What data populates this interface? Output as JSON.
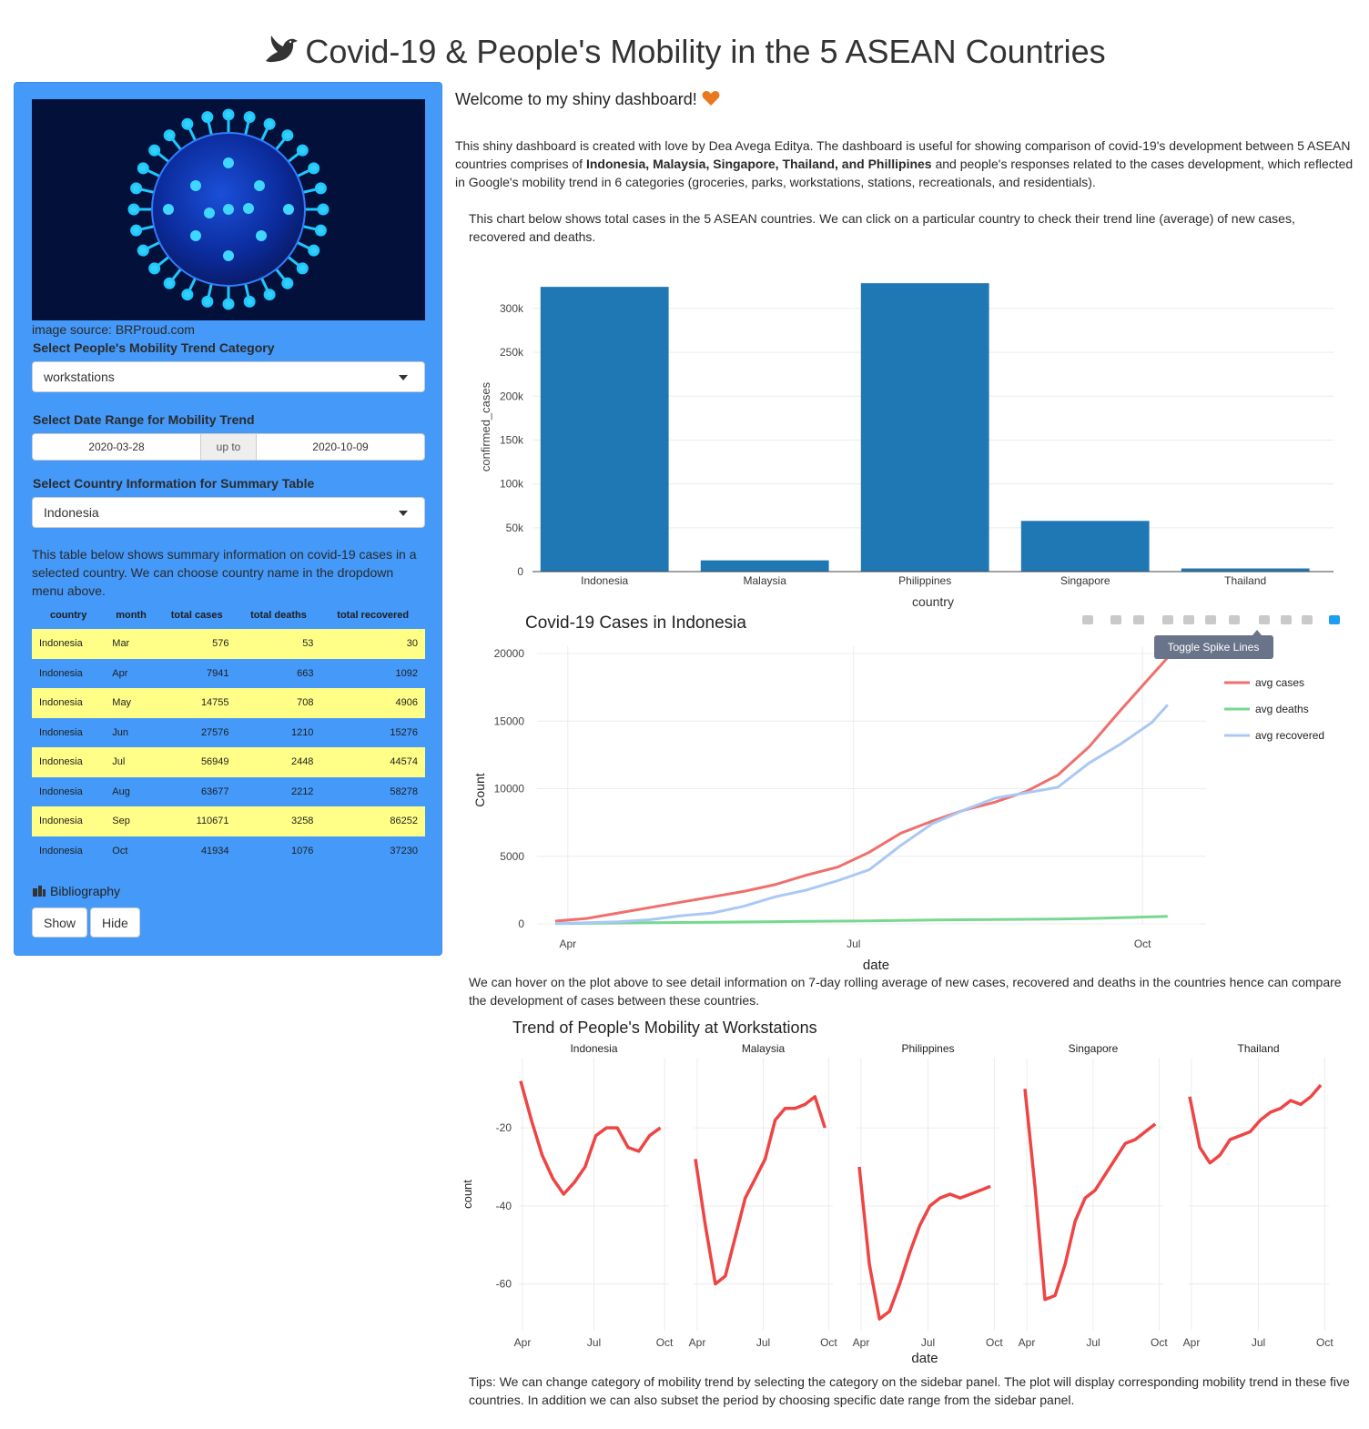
{
  "header": {
    "title": "Covid-19 & People's Mobility in the 5 ASEAN Countries",
    "icon": "dove-icon"
  },
  "sidebar": {
    "image_source": "image source: BRProud.com",
    "mobility_label": "Select People's Mobility Trend Category",
    "mobility_value": "workstations",
    "date_label": "Select Date Range for Mobility Trend",
    "date_start": "2020-03-28",
    "date_sep": "up to",
    "date_end": "2020-10-09",
    "country_label": "Select Country Information for Summary Table",
    "country_value": "Indonesia",
    "table_desc": "This table below shows summary information on covid-19 cases in a selected country. We can choose country name in the dropdown menu above.",
    "table": {
      "headers": [
        "country",
        "month",
        "total cases",
        "total deaths",
        "total recovered"
      ],
      "rows": [
        [
          "Indonesia",
          "Mar",
          "576",
          "53",
          "30"
        ],
        [
          "Indonesia",
          "Apr",
          "7941",
          "663",
          "1092"
        ],
        [
          "Indonesia",
          "May",
          "14755",
          "708",
          "4906"
        ],
        [
          "Indonesia",
          "Jun",
          "27576",
          "1210",
          "15276"
        ],
        [
          "Indonesia",
          "Jul",
          "56949",
          "2448",
          "44574"
        ],
        [
          "Indonesia",
          "Aug",
          "63677",
          "2212",
          "58278"
        ],
        [
          "Indonesia",
          "Sep",
          "110671",
          "3258",
          "86252"
        ],
        [
          "Indonesia",
          "Oct",
          "41934",
          "1076",
          "37230"
        ]
      ],
      "highlight_color": "#ffff88"
    },
    "bibliography_label": "Bibliography",
    "show_label": "Show",
    "hide_label": "Hide",
    "bg_color": "#4499f9"
  },
  "main": {
    "welcome": "Welcome to my shiny dashboard!",
    "intro_a": "This shiny dashboard is created with love by Dea Avega Editya. The dashboard is useful for showing comparison of covid-19's development between 5 ASEAN countries comprises of ",
    "intro_bold": "Indonesia, Malaysia, Singapore, Thailand, and Phillipines",
    "intro_b": " and people's responses related to the cases development, which reflected in Google's mobility trend in 6 categories (groceries, parks, workstations, stations, recreationals, and residentials).",
    "bar_desc": "This chart below shows total cases in the 5 ASEAN countries. We can click on a particular country to check their trend line (average) of new cases, recovered and deaths.",
    "line_desc": "We can hover on the plot above to see detail information on 7-day rolling average of new cases, recovered and deaths in the countries hence can compare the development of cases between these countries.",
    "tips": "Tips: We can change category of mobility trend by selecting the category on the sidebar panel. The plot will display corresponding mobility trend in these five countries. In addition we can also subset the period by choosing specific date range from the sidebar panel.",
    "tooltip": "Toggle Spike Lines"
  },
  "chart_data": [
    {
      "type": "bar",
      "categories": [
        "Indonesia",
        "Malaysia",
        "Philippines",
        "Singapore",
        "Thailand"
      ],
      "values": [
        324658,
        12813,
        328800,
        57800,
        3600
      ],
      "xlabel": "country",
      "ylabel": "confirmed_cases",
      "ylim": [
        0,
        320000
      ],
      "yticks": [
        0,
        50000,
        100000,
        150000,
        200000,
        250000,
        300000
      ],
      "ytick_labels": [
        "0",
        "50k",
        "100k",
        "150k",
        "200k",
        "250k",
        "300k"
      ],
      "color": "#1f77b4"
    },
    {
      "type": "line",
      "title": "Covid-19 Cases in Indonesia",
      "xlabel": "date",
      "ylabel": "Count",
      "x_ticks": [
        "Apr",
        "Jul",
        "Oct"
      ],
      "ylim": [
        0,
        20000
      ],
      "yticks": [
        0,
        5000,
        10000,
        15000,
        20000
      ],
      "x": [
        "2020-03-28",
        "2020-04-07",
        "2020-04-17",
        "2020-04-27",
        "2020-05-07",
        "2020-05-17",
        "2020-05-27",
        "2020-06-06",
        "2020-06-16",
        "2020-06-26",
        "2020-07-06",
        "2020-07-16",
        "2020-07-26",
        "2020-08-05",
        "2020-08-15",
        "2020-08-25",
        "2020-09-04",
        "2020-09-14",
        "2020-09-24",
        "2020-10-04",
        "2020-10-09"
      ],
      "legend_position": "top-right",
      "series": [
        {
          "name": "avg cases",
          "color": "#ef6f6c",
          "values": [
            200,
            400,
            800,
            1200,
            1600,
            2000,
            2400,
            2900,
            3600,
            4200,
            5300,
            6700,
            7600,
            8400,
            9000,
            9800,
            11000,
            13100,
            15800,
            18400,
            19700
          ]
        },
        {
          "name": "avg deaths",
          "color": "#77d890",
          "values": [
            20,
            40,
            60,
            80,
            100,
            120,
            140,
            160,
            180,
            200,
            220,
            250,
            280,
            300,
            320,
            340,
            360,
            400,
            450,
            520,
            560
          ]
        },
        {
          "name": "avg recovered",
          "color": "#aac8f5",
          "values": [
            30,
            80,
            150,
            300,
            600,
            800,
            1300,
            2000,
            2500,
            3200,
            4000,
            5800,
            7400,
            8400,
            9300,
            9700,
            10100,
            11900,
            13300,
            14900,
            16200
          ]
        }
      ]
    },
    {
      "type": "line",
      "title": "Trend of People's Mobility at Workstations",
      "xlabel": "date",
      "ylabel": "count",
      "x_ticks": [
        "Apr",
        "Jul",
        "Oct"
      ],
      "ylim": [
        -70,
        -5
      ],
      "yticks": [
        -60,
        -40,
        -20
      ],
      "series": [
        {
          "name": "Indonesia",
          "color": "#ef4444",
          "values": [
            -8,
            -18,
            -27,
            -33,
            -37,
            -34,
            -30,
            -22,
            -20,
            -20,
            -25,
            -26,
            -22,
            -20
          ]
        },
        {
          "name": "Malaysia",
          "color": "#ef4444",
          "values": [
            -28,
            -45,
            -60,
            -58,
            -48,
            -38,
            -33,
            -28,
            -18,
            -15,
            -15,
            -14,
            -12,
            -20
          ]
        },
        {
          "name": "Philippines",
          "color": "#ef4444",
          "values": [
            -30,
            -55,
            -69,
            -67,
            -60,
            -52,
            -45,
            -40,
            -38,
            -37,
            -38,
            -37,
            -36,
            -35
          ]
        },
        {
          "name": "Singapore",
          "color": "#ef4444",
          "values": [
            -10,
            -35,
            -64,
            -63,
            -55,
            -44,
            -38,
            -36,
            -32,
            -28,
            -24,
            -23,
            -21,
            -19
          ]
        },
        {
          "name": "Thailand",
          "color": "#ef4444",
          "values": [
            -12,
            -25,
            -29,
            -27,
            -23,
            -22,
            -21,
            -18,
            -16,
            -15,
            -13,
            -14,
            -12,
            -9
          ]
        }
      ]
    }
  ]
}
